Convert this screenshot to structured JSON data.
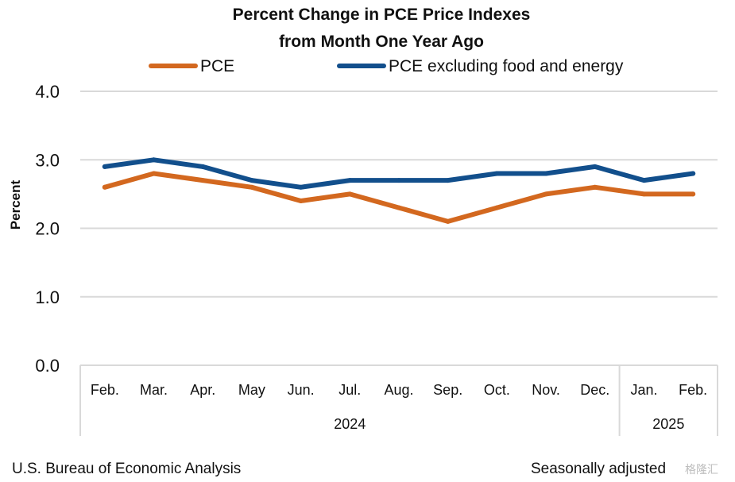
{
  "chart_data": {
    "type": "line",
    "title": [
      "Percent Change in PCE Price Indexes",
      "from Month One Year Ago"
    ],
    "ylabel": "Percent",
    "ylim": [
      0,
      4
    ],
    "yticks": [
      "0.0",
      "1.0",
      "2.0",
      "3.0",
      "4.0"
    ],
    "yticks_values": [
      0,
      1,
      2,
      3,
      4
    ],
    "grid": true,
    "legend_position": "top",
    "categories": [
      "Feb.",
      "Mar.",
      "Apr.",
      "May",
      "Jun.",
      "Jul.",
      "Aug.",
      "Sep.",
      "Oct.",
      "Nov.",
      "Dec.",
      "Jan.",
      "Feb."
    ],
    "year_groups": [
      {
        "label": "2024",
        "count": 11
      },
      {
        "label": "2025",
        "count": 2
      }
    ],
    "series": [
      {
        "name": "PCE",
        "color": "#D3681F",
        "values": [
          2.6,
          2.8,
          2.7,
          2.6,
          2.4,
          2.5,
          2.3,
          2.1,
          2.3,
          2.5,
          2.6,
          2.5,
          2.5
        ]
      },
      {
        "name": "PCE excluding food and energy",
        "color": "#124F8C",
        "values": [
          2.9,
          3.0,
          2.9,
          2.7,
          2.6,
          2.7,
          2.7,
          2.7,
          2.8,
          2.8,
          2.9,
          2.7,
          2.8
        ]
      }
    ]
  },
  "footer": {
    "source": "U.S. Bureau of Economic Analysis",
    "note": "Seasonally adjusted"
  },
  "watermark": "格隆汇"
}
